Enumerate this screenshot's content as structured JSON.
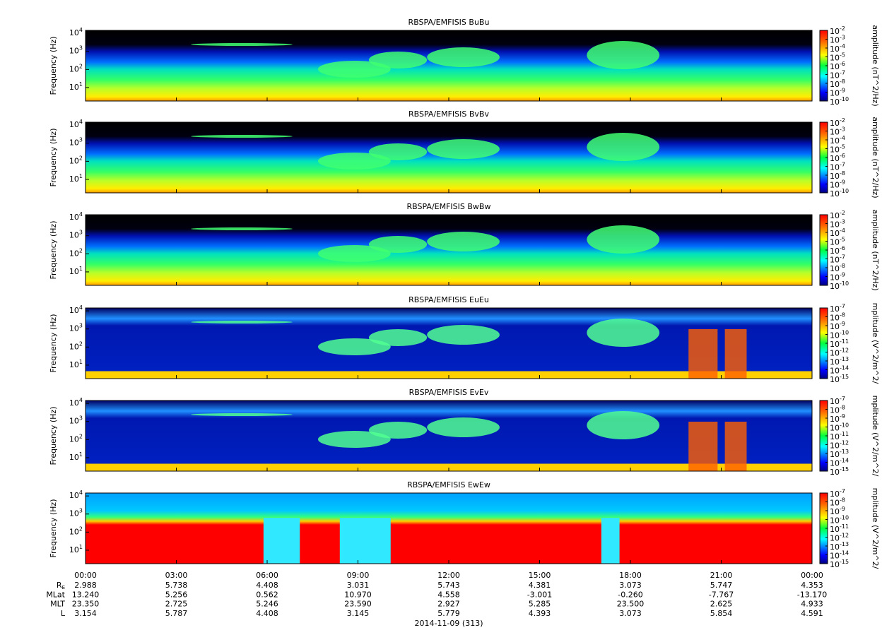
{
  "chart_data": [
    {
      "type": "spectrogram",
      "title": "RBSPA/EMFISIS  BuBu",
      "ylabel": "Frequency (Hz)",
      "log_y": true,
      "xlim": [
        0,
        24
      ],
      "ylim": [
        1.8,
        14500
      ],
      "yticks": [
        {
          "value": 10,
          "label": "10",
          "exponent": "1"
        },
        {
          "value": 100,
          "label": "10",
          "exponent": "2"
        },
        {
          "value": 1000,
          "label": "10",
          "exponent": "3"
        },
        {
          "value": 10000,
          "label": "10",
          "exponent": "4"
        }
      ],
      "zlabel": "amplitude (nT^2/Hz)",
      "zlim": [
        1e-10,
        0.01
      ],
      "zticks": [
        {
          "value": 1e-10,
          "label": "10",
          "exponent": "-10"
        },
        {
          "value": 1e-09,
          "label": "10",
          "exponent": "-9"
        },
        {
          "value": 1e-08,
          "label": "10",
          "exponent": "-8"
        },
        {
          "value": 1e-07,
          "label": "10",
          "exponent": "-7"
        },
        {
          "value": 1e-06,
          "label": "10",
          "exponent": "-6"
        },
        {
          "value": 1e-05,
          "label": "10",
          "exponent": "-5"
        },
        {
          "value": 0.0001,
          "label": "10",
          "exponent": "-4"
        },
        {
          "value": 0.001,
          "label": "10",
          "exponent": "-3"
        },
        {
          "value": 0.01,
          "label": "10",
          "exponent": "-2"
        }
      ]
    },
    {
      "type": "spectrogram",
      "title": "RBSPA/EMFISIS  BvBv",
      "ylabel": "Frequency (Hz)",
      "log_y": true,
      "xlim": [
        0,
        24
      ],
      "ylim": [
        1.8,
        14500
      ],
      "yticks": [
        {
          "value": 10,
          "label": "10",
          "exponent": "1"
        },
        {
          "value": 100,
          "label": "10",
          "exponent": "2"
        },
        {
          "value": 1000,
          "label": "10",
          "exponent": "3"
        },
        {
          "value": 10000,
          "label": "10",
          "exponent": "4"
        }
      ],
      "zlabel": "amplitude (nT^2/Hz)",
      "zlim": [
        1e-10,
        0.01
      ],
      "zticks": [
        {
          "value": 1e-10,
          "label": "10",
          "exponent": "-10"
        },
        {
          "value": 1e-09,
          "label": "10",
          "exponent": "-9"
        },
        {
          "value": 1e-08,
          "label": "10",
          "exponent": "-8"
        },
        {
          "value": 1e-07,
          "label": "10",
          "exponent": "-7"
        },
        {
          "value": 1e-06,
          "label": "10",
          "exponent": "-6"
        },
        {
          "value": 1e-05,
          "label": "10",
          "exponent": "-5"
        },
        {
          "value": 0.0001,
          "label": "10",
          "exponent": "-4"
        },
        {
          "value": 0.001,
          "label": "10",
          "exponent": "-3"
        },
        {
          "value": 0.01,
          "label": "10",
          "exponent": "-2"
        }
      ]
    },
    {
      "type": "spectrogram",
      "title": "RBSPA/EMFISIS  BwBw",
      "ylabel": "Frequency (Hz)",
      "log_y": true,
      "xlim": [
        0,
        24
      ],
      "ylim": [
        1.8,
        14500
      ],
      "yticks": [
        {
          "value": 10,
          "label": "10",
          "exponent": "1"
        },
        {
          "value": 100,
          "label": "10",
          "exponent": "2"
        },
        {
          "value": 1000,
          "label": "10",
          "exponent": "3"
        },
        {
          "value": 10000,
          "label": "10",
          "exponent": "4"
        }
      ],
      "zlabel": "amplitude (nT^2/Hz)",
      "zlim": [
        1e-10,
        0.01
      ],
      "zticks": [
        {
          "value": 1e-10,
          "label": "10",
          "exponent": "-10"
        },
        {
          "value": 1e-09,
          "label": "10",
          "exponent": "-9"
        },
        {
          "value": 1e-08,
          "label": "10",
          "exponent": "-8"
        },
        {
          "value": 1e-07,
          "label": "10",
          "exponent": "-7"
        },
        {
          "value": 1e-06,
          "label": "10",
          "exponent": "-6"
        },
        {
          "value": 1e-05,
          "label": "10",
          "exponent": "-5"
        },
        {
          "value": 0.0001,
          "label": "10",
          "exponent": "-4"
        },
        {
          "value": 0.001,
          "label": "10",
          "exponent": "-3"
        },
        {
          "value": 0.01,
          "label": "10",
          "exponent": "-2"
        }
      ]
    },
    {
      "type": "spectrogram",
      "title": "RBSPA/EMFISIS  EuEu",
      "ylabel": "Frequency (Hz)",
      "log_y": true,
      "xlim": [
        0,
        24
      ],
      "ylim": [
        1.8,
        14500
      ],
      "yticks": [
        {
          "value": 10,
          "label": "10",
          "exponent": "1"
        },
        {
          "value": 100,
          "label": "10",
          "exponent": "2"
        },
        {
          "value": 1000,
          "label": "10",
          "exponent": "3"
        },
        {
          "value": 10000,
          "label": "10",
          "exponent": "4"
        }
      ],
      "zlabel": "mplitude (V^2/m^2/",
      "zlim": [
        1e-15,
        1e-07
      ],
      "zticks": [
        {
          "value": 1e-15,
          "label": "10",
          "exponent": "-15"
        },
        {
          "value": 1e-14,
          "label": "10",
          "exponent": "-14"
        },
        {
          "value": 1e-13,
          "label": "10",
          "exponent": "-13"
        },
        {
          "value": 1e-12,
          "label": "10",
          "exponent": "-12"
        },
        {
          "value": 1e-11,
          "label": "10",
          "exponent": "-11"
        },
        {
          "value": 1e-10,
          "label": "10",
          "exponent": "-10"
        },
        {
          "value": 1e-09,
          "label": "10",
          "exponent": "-9"
        },
        {
          "value": 1e-08,
          "label": "10",
          "exponent": "-8"
        },
        {
          "value": 1e-07,
          "label": "10",
          "exponent": "-7"
        }
      ]
    },
    {
      "type": "spectrogram",
      "title": "RBSPA/EMFISIS  EvEv",
      "ylabel": "Frequency (Hz)",
      "log_y": true,
      "xlim": [
        0,
        24
      ],
      "ylim": [
        1.8,
        14500
      ],
      "yticks": [
        {
          "value": 10,
          "label": "10",
          "exponent": "1"
        },
        {
          "value": 100,
          "label": "10",
          "exponent": "2"
        },
        {
          "value": 1000,
          "label": "10",
          "exponent": "3"
        },
        {
          "value": 10000,
          "label": "10",
          "exponent": "4"
        }
      ],
      "zlabel": "mplitude (V^2/m^2/",
      "zlim": [
        1e-15,
        1e-07
      ],
      "zticks": [
        {
          "value": 1e-15,
          "label": "10",
          "exponent": "-15"
        },
        {
          "value": 1e-14,
          "label": "10",
          "exponent": "-14"
        },
        {
          "value": 1e-13,
          "label": "10",
          "exponent": "-13"
        },
        {
          "value": 1e-12,
          "label": "10",
          "exponent": "-12"
        },
        {
          "value": 1e-11,
          "label": "10",
          "exponent": "-11"
        },
        {
          "value": 1e-10,
          "label": "10",
          "exponent": "-10"
        },
        {
          "value": 1e-09,
          "label": "10",
          "exponent": "-9"
        },
        {
          "value": 1e-08,
          "label": "10",
          "exponent": "-8"
        },
        {
          "value": 1e-07,
          "label": "10",
          "exponent": "-7"
        }
      ]
    },
    {
      "type": "spectrogram",
      "title": "RBSPA/EMFISIS  EwEw",
      "ylabel": "Frequency (Hz)",
      "log_y": true,
      "xlim": [
        0,
        24
      ],
      "ylim": [
        1.8,
        14500
      ],
      "yticks": [
        {
          "value": 10,
          "label": "10",
          "exponent": "1"
        },
        {
          "value": 100,
          "label": "10",
          "exponent": "2"
        },
        {
          "value": 1000,
          "label": "10",
          "exponent": "3"
        },
        {
          "value": 10000,
          "label": "10",
          "exponent": "4"
        }
      ],
      "zlabel": "mplitude (V^2/m^2/",
      "zlim": [
        1e-15,
        1e-07
      ],
      "zticks": [
        {
          "value": 1e-15,
          "label": "10",
          "exponent": "-15"
        },
        {
          "value": 1e-14,
          "label": "10",
          "exponent": "-14"
        },
        {
          "value": 1e-13,
          "label": "10",
          "exponent": "-13"
        },
        {
          "value": 1e-12,
          "label": "10",
          "exponent": "-12"
        },
        {
          "value": 1e-11,
          "label": "10",
          "exponent": "-11"
        },
        {
          "value": 1e-10,
          "label": "10",
          "exponent": "-10"
        },
        {
          "value": 1e-09,
          "label": "10",
          "exponent": "-9"
        },
        {
          "value": 1e-08,
          "label": "10",
          "exponent": "-8"
        },
        {
          "value": 1e-07,
          "label": "10",
          "exponent": "-7"
        }
      ],
      "xticks": [
        {
          "value": 0,
          "label": "00:00"
        },
        {
          "value": 3,
          "label": "03:00"
        },
        {
          "value": 6,
          "label": "06:00"
        },
        {
          "value": 9,
          "label": "09:00"
        },
        {
          "value": 12,
          "label": "12:00"
        },
        {
          "value": 15,
          "label": "15:00"
        },
        {
          "value": 18,
          "label": "18:00"
        },
        {
          "value": 21,
          "label": "21:00"
        },
        {
          "value": 24,
          "label": "00:00"
        }
      ],
      "ephemeris": [
        {
          "label": "R",
          "subscript": "E",
          "values": [
            2.988,
            5.738,
            4.408,
            3.031,
            5.743,
            4.381,
            3.073,
            5.747,
            4.353
          ],
          "value_labels": [
            "2.988",
            "5.738",
            "4.408",
            "3.031",
            "5.743",
            "4.381",
            "3.073",
            "5.747",
            "4.353"
          ]
        },
        {
          "label": "MLat",
          "values": [
            13.24,
            5.256,
            0.562,
            10.97,
            4.558,
            -3.001,
            -0.26,
            -7.767,
            -13.17
          ],
          "value_labels": [
            "13.240",
            "5.256",
            "0.562",
            "10.970",
            "4.558",
            "-3.001",
            "-0.260",
            "-7.767",
            "-13.170"
          ]
        },
        {
          "label": "MLT",
          "values": [
            23.35,
            2.725,
            5.246,
            23.59,
            2.927,
            5.285,
            23.5,
            2.625,
            4.933
          ],
          "value_labels": [
            "23.350",
            "2.725",
            "5.246",
            "23.590",
            "2.927",
            "5.285",
            "23.500",
            "2.625",
            "4.933"
          ]
        },
        {
          "label": "L",
          "values": [
            3.154,
            5.787,
            4.408,
            3.145,
            5.779,
            4.393,
            3.073,
            5.854,
            4.591
          ],
          "value_labels": [
            "3.154",
            "5.787",
            "4.408",
            "3.145",
            "5.779",
            "4.393",
            "3.073",
            "5.854",
            "4.591"
          ]
        }
      ],
      "xlabel": "2014-11-09 (313)"
    }
  ]
}
